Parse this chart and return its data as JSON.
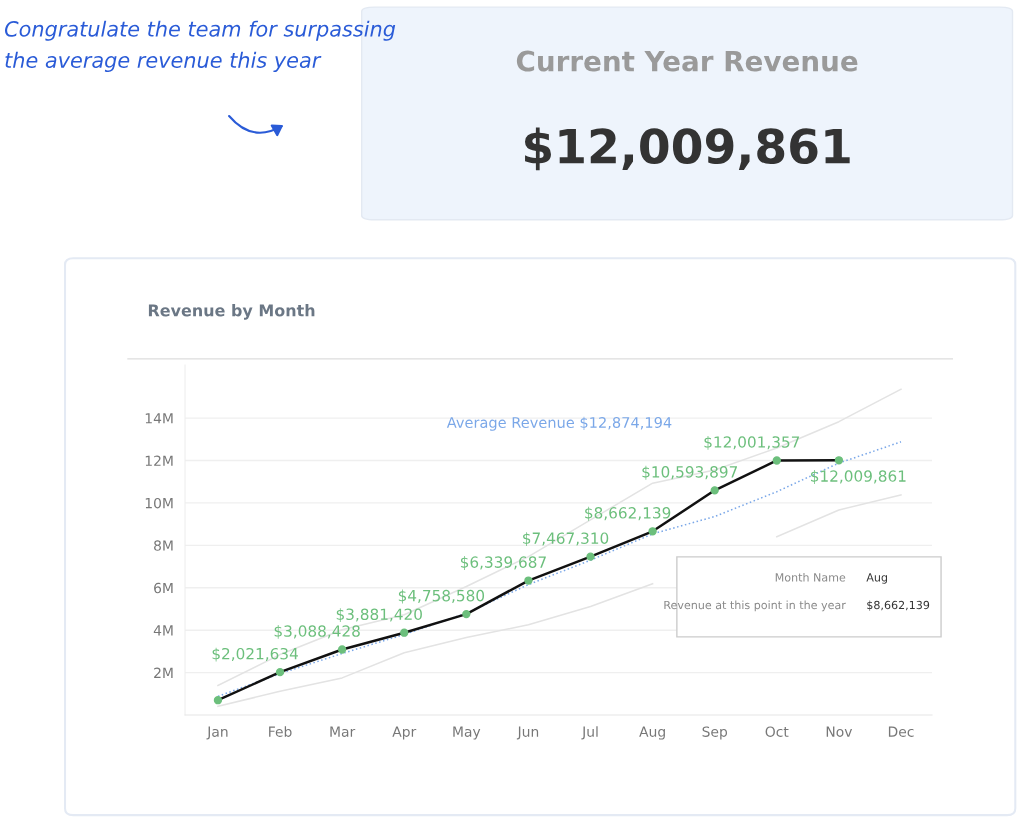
{
  "chart_data": [
    {
      "type": "other",
      "title": "Current Year Revenue",
      "annotations": [
        "$12,009,861",
        "Congratulate the team for surpassing the average revenue this year"
      ]
    },
    {
      "type": "line",
      "title": "Revenue by Month",
      "categories": [
        "Jan",
        "Feb",
        "Mar",
        "Apr",
        "May",
        "Jun",
        "Jul",
        "Aug",
        "Sep",
        "Oct",
        "Nov",
        "Dec"
      ],
      "series": [
        {
          "color": "#e3e3e3",
          "line_style": "solid",
          "marker": "none",
          "values": [
            1390000,
            2850000,
            4020000,
            4730000,
            6060000,
            7470000,
            9200000,
            10930000,
            11550000,
            12590000,
            13830000,
            15360000
          ]
        },
        {
          "color": "#e3e3e3",
          "line_style": "solid",
          "marker": "none",
          "values": [
            410000,
            1120000,
            1750000,
            2940000,
            3650000,
            4260000,
            5120000,
            6190000,
            null,
            8410000,
            9670000,
            10380000
          ]
        },
        {
          "name": "Average Revenue $12,874,194",
          "color": "#7aa7e8",
          "line_style": "dotted",
          "marker": "none",
          "values": [
            880000,
            1950000,
            2900000,
            3800000,
            4800000,
            6150000,
            7300000,
            8540000,
            9360000,
            10530000,
            11880000,
            12880000
          ]
        },
        {
          "color": "#111111",
          "line_style": "solid",
          "marker": "circle",
          "values": [
            700000,
            2021634,
            3088428,
            3881420,
            4758580,
            6339687,
            7467310,
            8662139,
            10593897,
            12001357,
            12009861,
            null
          ],
          "value_labels": [
            null,
            "$2,021,634",
            "$3,088,428",
            "$3,881,420",
            "$4,758,580",
            "$6,339,687",
            "$7,467,310",
            "$8,662,139",
            "$10,593,897",
            "$12,001,357",
            "$12,009,861",
            null
          ]
        }
      ],
      "ylim": [
        0,
        16500000
      ],
      "yticks": [
        {
          "value": 2000000,
          "label": "2M"
        },
        {
          "value": 4000000,
          "label": "4M"
        },
        {
          "value": 6000000,
          "label": "6M"
        },
        {
          "value": 8000000,
          "label": "8M"
        },
        {
          "value": 10000000,
          "label": "10M"
        },
        {
          "value": 12000000,
          "label": "12M"
        },
        {
          "value": 14000000,
          "label": "14M"
        }
      ],
      "grid": "y",
      "legend": false,
      "annotations": [
        "Month Name",
        "Aug",
        "Revenue at this point in the year",
        "$8,662,139"
      ]
    }
  ]
}
